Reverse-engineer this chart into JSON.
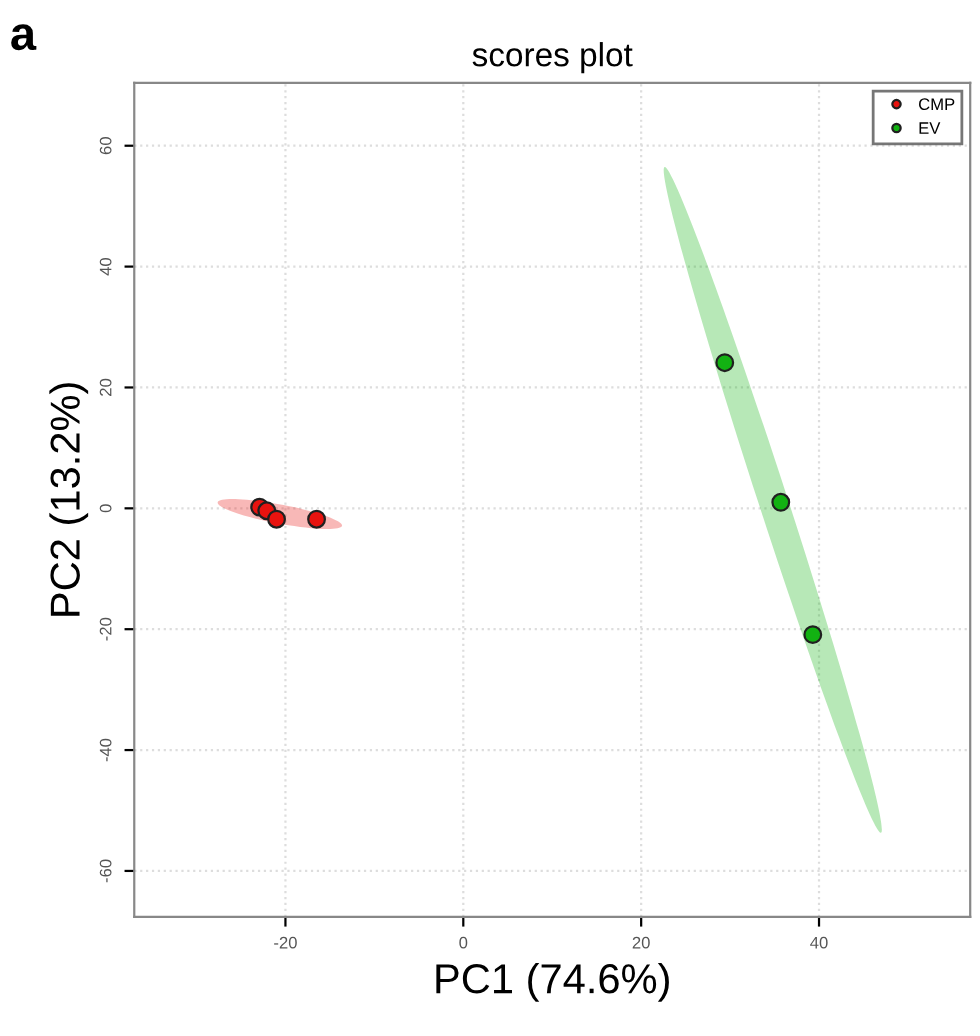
{
  "chart_data": {
    "type": "scatter",
    "title": "scores plot",
    "xlabel": "PC1 (74.6%)",
    "ylabel": "PC2 (13.2%)",
    "annotations": [
      "a"
    ],
    "series": [
      {
        "name": "CMP",
        "color": "#e8130f",
        "x": [
          -22.9,
          -22.1,
          -21.0,
          -16.5
        ],
        "values": [
          0.2,
          -0.4,
          -1.8,
          -1.8
        ]
      },
      {
        "name": "EV",
        "color": "#12b212",
        "x": [
          29.4,
          35.7,
          39.3
        ],
        "values": [
          24.1,
          1.0,
          -20.9
        ]
      }
    ],
    "xlim": [
      -37,
      57
    ],
    "ylim": [
      -67.6,
      70.4
    ],
    "xticks": [
      -20,
      0,
      20,
      40
    ],
    "yticks": [
      -60,
      -40,
      -20,
      0,
      20,
      40,
      60
    ],
    "grid": true,
    "legend": "top right",
    "marker": "circle"
  }
}
